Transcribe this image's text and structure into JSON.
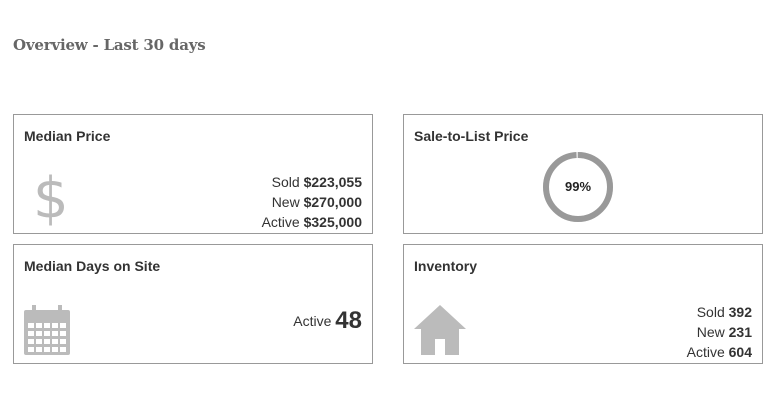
{
  "page": {
    "heading": "Overview - Last 30 days"
  },
  "cards": {
    "median_price": {
      "title": "Median Price",
      "icon": "dollar-icon",
      "icon_glyph": "$",
      "stats": [
        {
          "label": "Sold",
          "value": "$223,055"
        },
        {
          "label": "New",
          "value": "$270,000"
        },
        {
          "label": "Active",
          "value": "$325,000"
        }
      ]
    },
    "sale_to_list": {
      "title": "Sale-to-List Price",
      "value_label": "99%",
      "percent": 99,
      "ring_color": "#999999",
      "track_color": "#dddddd"
    },
    "median_days": {
      "title": "Median Days on Site",
      "icon": "calendar-icon",
      "stat_label": "Active",
      "stat_value": "48"
    },
    "inventory": {
      "title": "Inventory",
      "icon": "house-icon",
      "stats": [
        {
          "label": "Sold",
          "value": "392"
        },
        {
          "label": "New",
          "value": "231"
        },
        {
          "label": "Active",
          "value": "604"
        }
      ]
    }
  },
  "colors": {
    "icon_gray": "#bbbbbb",
    "border": "#999999",
    "heading": "#666666"
  }
}
